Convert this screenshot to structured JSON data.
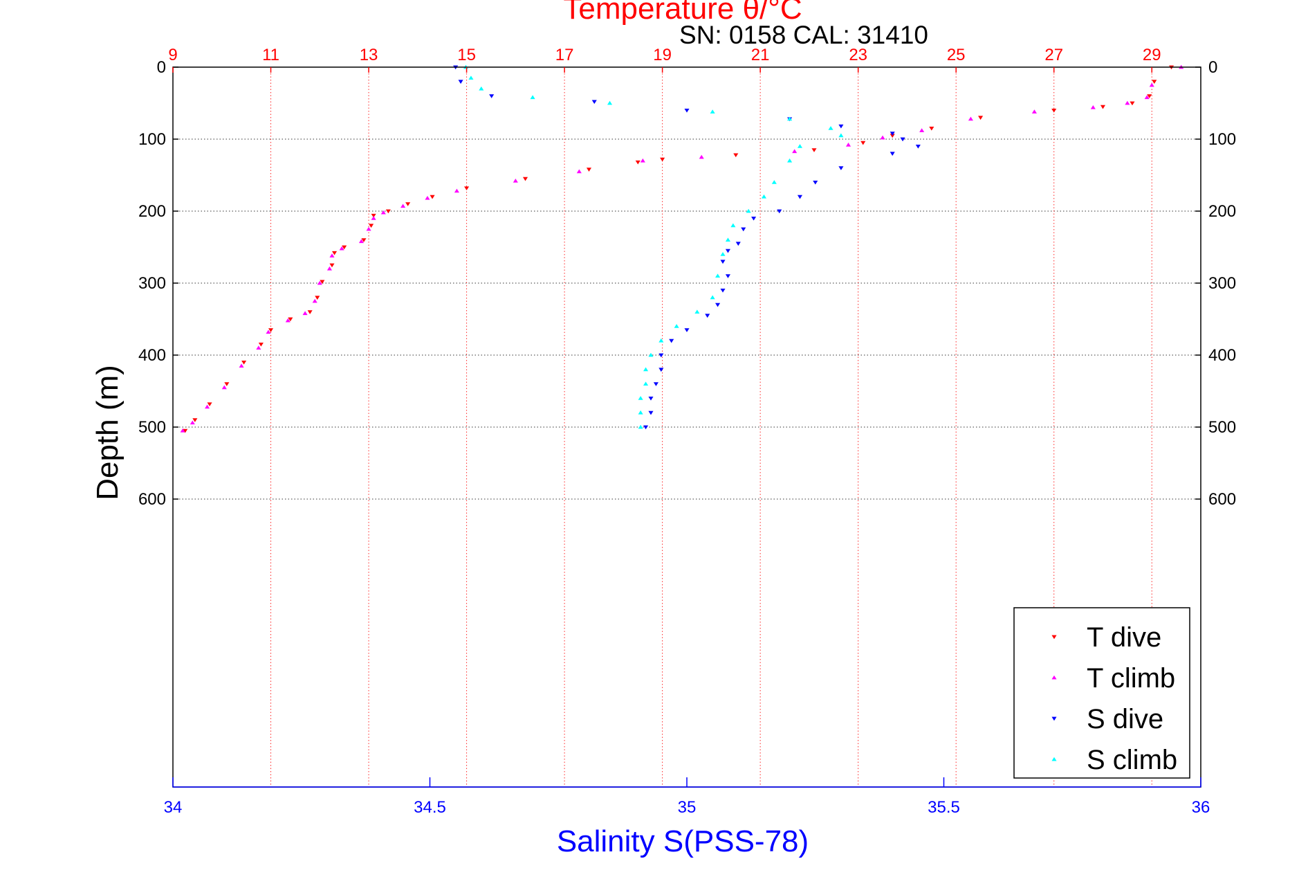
{
  "chart_data": {
    "type": "scatter",
    "title": "Temperature θ/°C",
    "subtitle": "SN: 0158  CAL: 31410",
    "ylabel": "Depth (m)",
    "xlabel_bottom": "Salinity S(PSS-78)",
    "xlabel_top": "Temperature θ/°C",
    "ylim": [
      0,
      1000
    ],
    "y_reversed": true,
    "y_ticks": [
      0,
      100,
      200,
      300,
      400,
      500,
      600
    ],
    "x_top_range": [
      9,
      30
    ],
    "x_top_ticks": [
      9,
      11,
      13,
      15,
      17,
      19,
      21,
      23,
      25,
      27,
      29
    ],
    "x_bottom_range": [
      34,
      36
    ],
    "x_bottom_ticks": [
      34,
      34.5,
      35,
      35.5,
      36
    ],
    "grid": true,
    "legend_position": "bottom-right",
    "colors": {
      "temperature_axis": "#ff0000",
      "salinity_axis": "#0000ff",
      "frame": "#000000",
      "grid": "#000000"
    },
    "series": [
      {
        "name": "T dive",
        "axis": "temperature",
        "marker": "triangle-down",
        "color": "#ff0000",
        "points": [
          [
            29.4,
            0
          ],
          [
            29.05,
            20
          ],
          [
            28.95,
            40
          ],
          [
            28.6,
            50
          ],
          [
            28.0,
            55
          ],
          [
            27.0,
            60
          ],
          [
            25.5,
            70
          ],
          [
            24.5,
            85
          ],
          [
            23.7,
            95
          ],
          [
            23.1,
            105
          ],
          [
            22.1,
            115
          ],
          [
            20.5,
            122
          ],
          [
            19.0,
            128
          ],
          [
            18.5,
            132
          ],
          [
            17.5,
            142
          ],
          [
            16.2,
            155
          ],
          [
            15.0,
            168
          ],
          [
            14.3,
            180
          ],
          [
            13.8,
            190
          ],
          [
            13.4,
            200
          ],
          [
            13.1,
            206
          ],
          [
            13.05,
            220
          ],
          [
            12.9,
            240
          ],
          [
            12.5,
            250
          ],
          [
            12.3,
            258
          ],
          [
            12.25,
            275
          ],
          [
            12.05,
            298
          ],
          [
            11.95,
            320
          ],
          [
            11.8,
            340
          ],
          [
            11.4,
            350
          ],
          [
            11.0,
            365
          ],
          [
            10.8,
            385
          ],
          [
            10.45,
            410
          ],
          [
            10.1,
            440
          ],
          [
            9.75,
            468
          ],
          [
            9.45,
            490
          ],
          [
            9.25,
            505
          ]
        ]
      },
      {
        "name": "T climb",
        "axis": "temperature",
        "marker": "triangle-up",
        "color": "#ff00ff",
        "points": [
          [
            29.6,
            0
          ],
          [
            29.0,
            25
          ],
          [
            28.9,
            42
          ],
          [
            28.5,
            50
          ],
          [
            27.8,
            56
          ],
          [
            26.6,
            62
          ],
          [
            25.3,
            72
          ],
          [
            24.3,
            88
          ],
          [
            23.5,
            98
          ],
          [
            22.8,
            108
          ],
          [
            21.7,
            117
          ],
          [
            19.8,
            125
          ],
          [
            18.6,
            130
          ],
          [
            17.3,
            145
          ],
          [
            16.0,
            158
          ],
          [
            14.8,
            172
          ],
          [
            14.2,
            182
          ],
          [
            13.7,
            193
          ],
          [
            13.3,
            202
          ],
          [
            13.1,
            210
          ],
          [
            13.0,
            225
          ],
          [
            12.85,
            242
          ],
          [
            12.45,
            252
          ],
          [
            12.25,
            262
          ],
          [
            12.2,
            280
          ],
          [
            12.0,
            300
          ],
          [
            11.9,
            325
          ],
          [
            11.7,
            342
          ],
          [
            11.35,
            352
          ],
          [
            10.95,
            368
          ],
          [
            10.75,
            390
          ],
          [
            10.4,
            415
          ],
          [
            10.05,
            445
          ],
          [
            9.7,
            472
          ],
          [
            9.4,
            494
          ],
          [
            9.2,
            505
          ]
        ]
      },
      {
        "name": "S dive",
        "axis": "salinity",
        "marker": "triangle-down",
        "color": "#0000ff",
        "points": [
          [
            34.55,
            0
          ],
          [
            34.56,
            20
          ],
          [
            34.62,
            40
          ],
          [
            34.82,
            48
          ],
          [
            35.0,
            60
          ],
          [
            35.2,
            72
          ],
          [
            35.3,
            82
          ],
          [
            35.4,
            92
          ],
          [
            35.42,
            100
          ],
          [
            35.45,
            110
          ],
          [
            35.4,
            120
          ],
          [
            35.3,
            140
          ],
          [
            35.25,
            160
          ],
          [
            35.22,
            180
          ],
          [
            35.18,
            200
          ],
          [
            35.13,
            210
          ],
          [
            35.11,
            225
          ],
          [
            35.1,
            245
          ],
          [
            35.08,
            255
          ],
          [
            35.07,
            270
          ],
          [
            35.08,
            290
          ],
          [
            35.07,
            310
          ],
          [
            35.06,
            330
          ],
          [
            35.04,
            345
          ],
          [
            35.0,
            365
          ],
          [
            34.97,
            380
          ],
          [
            34.95,
            400
          ],
          [
            34.95,
            420
          ],
          [
            34.94,
            440
          ],
          [
            34.93,
            460
          ],
          [
            34.93,
            480
          ],
          [
            34.92,
            500
          ]
        ]
      },
      {
        "name": "S climb",
        "axis": "salinity",
        "marker": "triangle-up",
        "color": "#00ffff",
        "points": [
          [
            34.57,
            0
          ],
          [
            34.58,
            15
          ],
          [
            34.6,
            30
          ],
          [
            34.7,
            42
          ],
          [
            34.85,
            50
          ],
          [
            35.05,
            62
          ],
          [
            35.2,
            72
          ],
          [
            35.28,
            85
          ],
          [
            35.3,
            95
          ],
          [
            35.22,
            110
          ],
          [
            35.2,
            130
          ],
          [
            35.17,
            160
          ],
          [
            35.15,
            180
          ],
          [
            35.12,
            200
          ],
          [
            35.09,
            220
          ],
          [
            35.08,
            240
          ],
          [
            35.07,
            260
          ],
          [
            35.06,
            290
          ],
          [
            35.05,
            320
          ],
          [
            35.02,
            340
          ],
          [
            34.98,
            360
          ],
          [
            34.95,
            380
          ],
          [
            34.93,
            400
          ],
          [
            34.92,
            420
          ],
          [
            34.92,
            440
          ],
          [
            34.91,
            460
          ],
          [
            34.91,
            480
          ],
          [
            34.91,
            500
          ]
        ]
      }
    ]
  }
}
